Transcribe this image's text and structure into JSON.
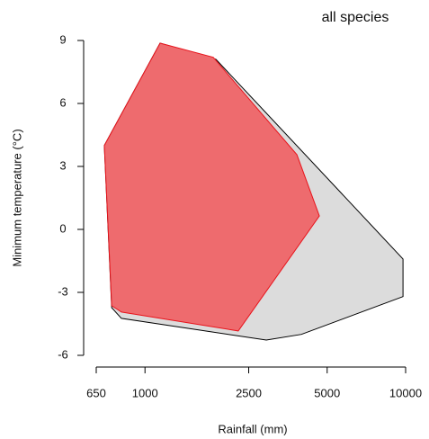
{
  "chart_data": {
    "type": "polygon",
    "title": "all species",
    "x_label": "Rainfall (mm)",
    "y_label": "Minimum temperature (°C)",
    "log_x": true,
    "xlim": [
      650,
      10000
    ],
    "xticks": [
      650,
      1000,
      2500,
      5000,
      10000
    ],
    "ylim": [
      -6,
      9
    ],
    "yticks": [
      -6,
      -3,
      0,
      3,
      6,
      9
    ],
    "series": [
      {
        "color": "#dcdcdc",
        "x": [
          698,
          1143,
          1871,
          9770,
          9770,
          3980,
          2920,
          812,
          745
        ],
        "values": [
          4.0,
          8.87,
          8.1,
          -1.41,
          -3.2,
          -5.0,
          -5.27,
          -4.24,
          -3.73
        ]
      },
      {
        "color": "#ee6b6e",
        "x": [
          698,
          1143,
          1828,
          3827,
          4667,
          2280,
          812,
          745
        ],
        "values": [
          4.0,
          8.87,
          8.2,
          3.56,
          0.64,
          -4.84,
          -3.94,
          -3.64
        ]
      }
    ]
  }
}
